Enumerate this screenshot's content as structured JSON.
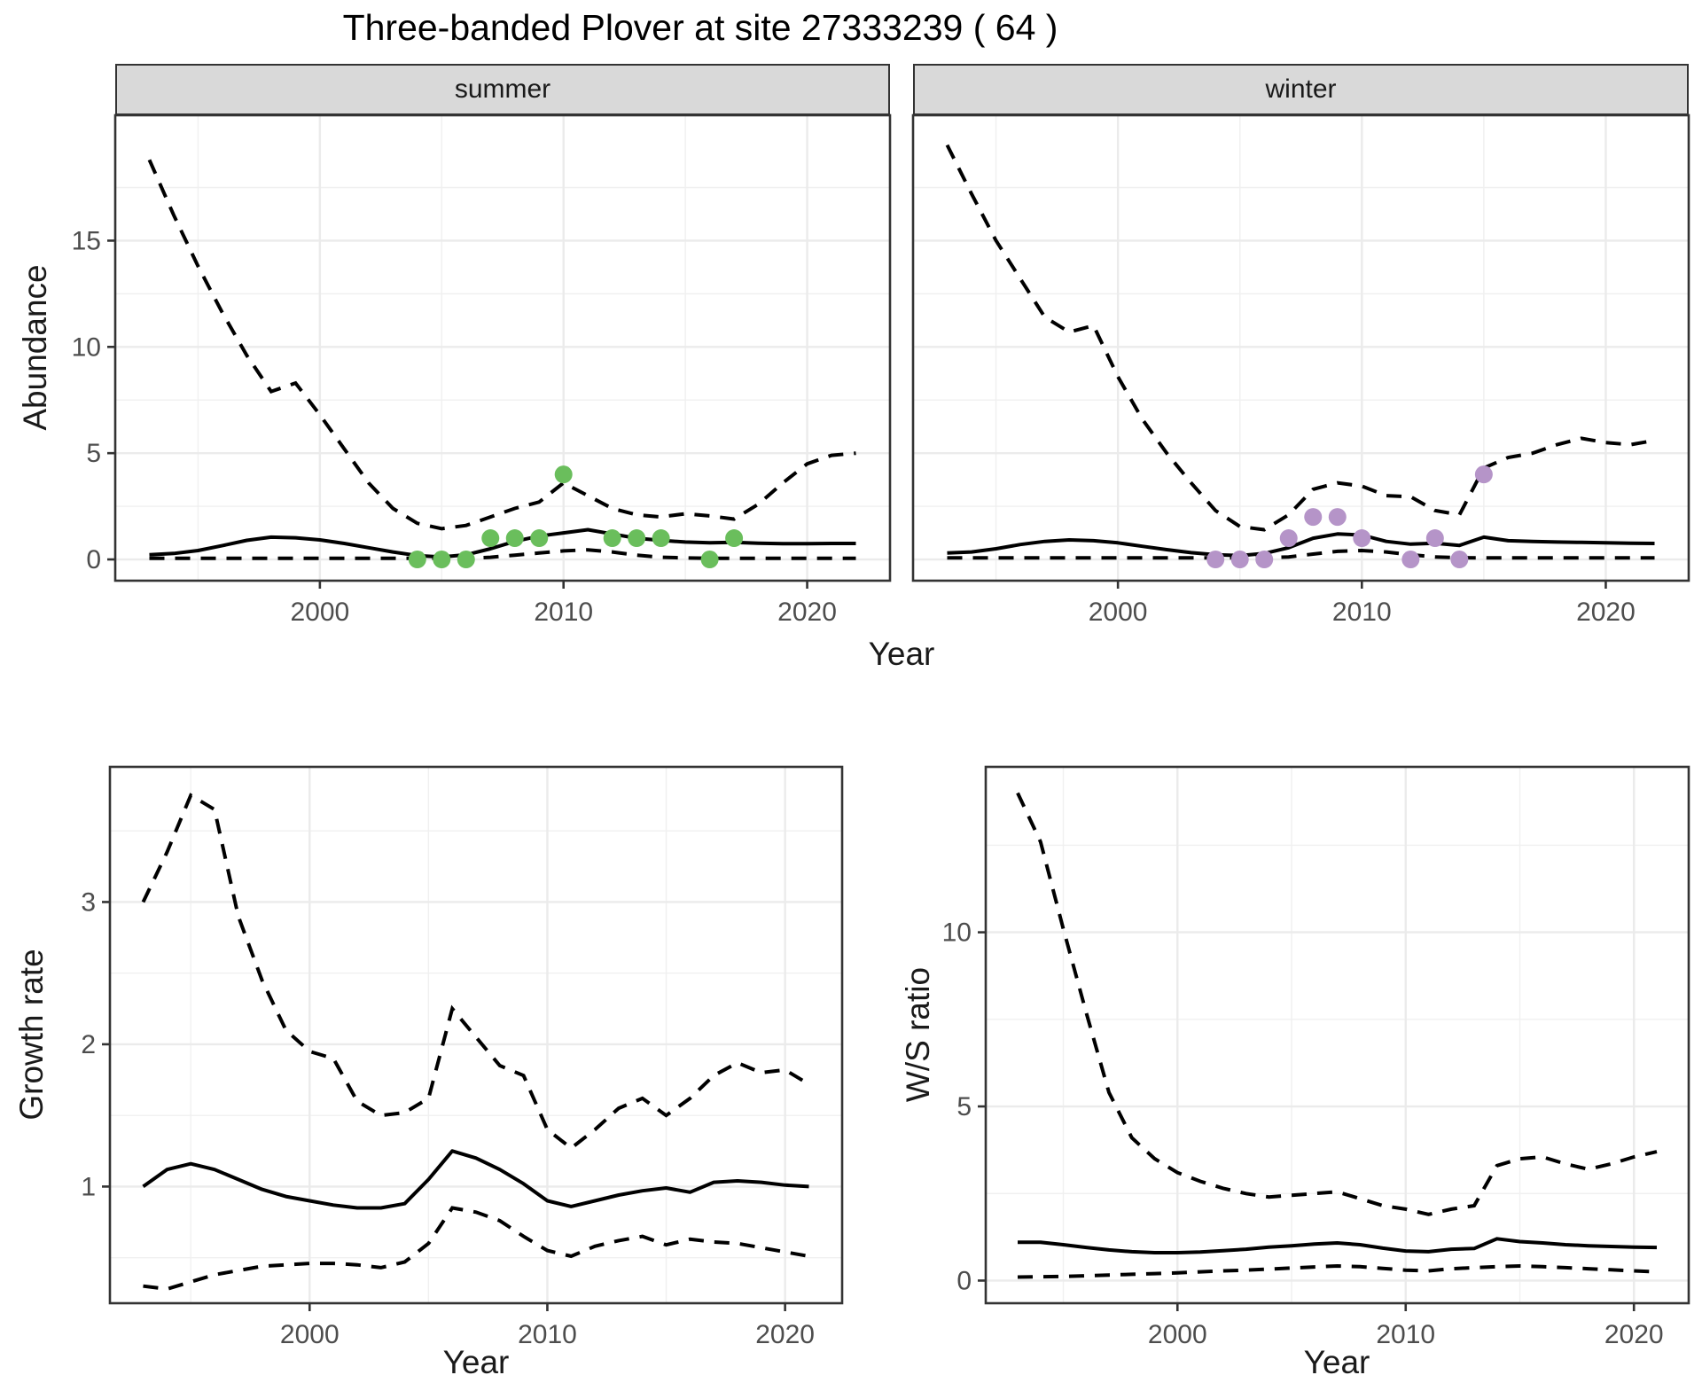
{
  "title": "Three-banded Plover at site 27333239 ( 64 )",
  "style": {
    "summer_point_color": "#6ABE5C",
    "winter_point_color": "#B594C8",
    "strip_background": "#D9D9D9",
    "grid_major_color": "#EBEBEB",
    "grid_minor_color": "#F0F0F0",
    "panel_border_color": "#333333",
    "tick_color": "#333333",
    "axis_text_color": "#4D4D4D",
    "line_color": "#000000"
  },
  "chart_data": [
    {
      "type": "line",
      "facet": "summer",
      "ylabel": "Abundance",
      "xlabel": "Year",
      "xlim": [
        1991.6,
        2023.4
      ],
      "ylim": [
        -1.0,
        20.9
      ],
      "xticks": [
        2000,
        2010,
        2020
      ],
      "xminor": [
        1995,
        2005,
        2015
      ],
      "yticks": [
        0,
        5,
        10,
        15
      ],
      "yminor": [
        2.5,
        7.5,
        12.5,
        17.5
      ],
      "x": [
        1993,
        1994,
        1995,
        1996,
        1997,
        1998,
        1999,
        2000,
        2001,
        2002,
        2003,
        2004,
        2005,
        2006,
        2007,
        2008,
        2009,
        2010,
        2011,
        2012,
        2013,
        2014,
        2015,
        2016,
        2017,
        2018,
        2019,
        2020,
        2021,
        2022
      ],
      "series": {
        "upper_ci": [
          18.8,
          16.2,
          13.8,
          11.6,
          9.6,
          7.9,
          8.3,
          6.8,
          5.2,
          3.6,
          2.4,
          1.7,
          1.45,
          1.6,
          2.0,
          2.4,
          2.7,
          3.6,
          3.0,
          2.4,
          2.1,
          2.0,
          2.15,
          2.05,
          1.9,
          2.6,
          3.6,
          4.5,
          4.9,
          5.0
        ],
        "median": [
          0.22,
          0.28,
          0.42,
          0.65,
          0.9,
          1.05,
          1.02,
          0.92,
          0.75,
          0.55,
          0.35,
          0.18,
          0.12,
          0.22,
          0.5,
          0.85,
          1.1,
          1.25,
          1.4,
          1.2,
          1.0,
          0.9,
          0.82,
          0.78,
          0.8,
          0.76,
          0.74,
          0.74,
          0.75,
          0.75
        ],
        "lower_ci": [
          0.05,
          0.05,
          0.05,
          0.05,
          0.05,
          0.05,
          0.05,
          0.05,
          0.05,
          0.05,
          0.05,
          0.05,
          0.05,
          0.05,
          0.1,
          0.2,
          0.3,
          0.4,
          0.45,
          0.35,
          0.2,
          0.1,
          0.07,
          0.05,
          0.05,
          0.05,
          0.05,
          0.05,
          0.05,
          0.05
        ]
      },
      "points": {
        "color": "#6ABE5C",
        "x": [
          2004,
          2005,
          2006,
          2007,
          2008,
          2009,
          2010,
          2012,
          2013,
          2014,
          2016,
          2017
        ],
        "y": [
          0,
          0,
          0,
          1,
          1,
          1,
          4,
          1,
          1,
          1,
          0,
          1
        ]
      }
    },
    {
      "type": "line",
      "facet": "winter",
      "ylabel": "Abundance",
      "xlabel": "Year",
      "xlim": [
        1991.6,
        2023.4
      ],
      "ylim": [
        -1.0,
        20.9
      ],
      "xticks": [
        2000,
        2010,
        2020
      ],
      "xminor": [
        1995,
        2005,
        2015
      ],
      "yticks": [
        0,
        5,
        10,
        15
      ],
      "yminor": [
        2.5,
        7.5,
        12.5,
        17.5
      ],
      "x": [
        1993,
        1994,
        1995,
        1996,
        1997,
        1998,
        1999,
        2000,
        2001,
        2002,
        2003,
        2004,
        2005,
        2006,
        2007,
        2008,
        2009,
        2010,
        2011,
        2012,
        2013,
        2014,
        2015,
        2016,
        2017,
        2018,
        2019,
        2020,
        2021,
        2022
      ],
      "series": {
        "upper_ci": [
          19.5,
          17.2,
          15.0,
          13.2,
          11.4,
          10.7,
          11.0,
          8.6,
          6.6,
          5.0,
          3.6,
          2.3,
          1.55,
          1.4,
          2.1,
          3.3,
          3.6,
          3.45,
          3.0,
          2.95,
          2.3,
          2.1,
          4.3,
          4.8,
          5.0,
          5.4,
          5.7,
          5.5,
          5.4,
          5.6
        ],
        "median": [
          0.3,
          0.35,
          0.5,
          0.7,
          0.85,
          0.92,
          0.88,
          0.78,
          0.62,
          0.46,
          0.32,
          0.22,
          0.18,
          0.28,
          0.55,
          1.0,
          1.2,
          1.15,
          0.85,
          0.72,
          0.76,
          0.66,
          1.05,
          0.88,
          0.85,
          0.82,
          0.8,
          0.78,
          0.76,
          0.75
        ],
        "lower_ci": [
          0.07,
          0.07,
          0.07,
          0.07,
          0.07,
          0.07,
          0.07,
          0.07,
          0.07,
          0.07,
          0.07,
          0.07,
          0.07,
          0.07,
          0.12,
          0.25,
          0.38,
          0.42,
          0.35,
          0.22,
          0.12,
          0.08,
          0.07,
          0.07,
          0.07,
          0.07,
          0.07,
          0.07,
          0.07,
          0.07
        ]
      },
      "points": {
        "color": "#B594C8",
        "x": [
          2004,
          2005,
          2006,
          2007,
          2008,
          2009,
          2010,
          2012,
          2013,
          2014,
          2015
        ],
        "y": [
          0,
          0,
          0,
          1,
          2,
          2,
          1,
          0,
          1,
          0,
          4
        ]
      }
    },
    {
      "type": "line",
      "facet": "",
      "ylabel": "Growth rate",
      "xlabel": "Year",
      "xlim": [
        1991.6,
        2022.4
      ],
      "ylim": [
        0.18,
        3.95
      ],
      "xticks": [
        2000,
        2010,
        2020
      ],
      "xminor": [
        1995,
        2005,
        2015
      ],
      "yticks": [
        1,
        2,
        3
      ],
      "yminor": [
        0.5,
        1.5,
        2.5,
        3.5
      ],
      "x": [
        1993,
        1994,
        1995,
        1996,
        1997,
        1998,
        1999,
        2000,
        2001,
        2002,
        2003,
        2004,
        2005,
        2006,
        2007,
        2008,
        2009,
        2010,
        2011,
        2012,
        2013,
        2014,
        2015,
        2016,
        2017,
        2018,
        2019,
        2020,
        2021
      ],
      "series": {
        "upper_ci": [
          3.0,
          3.35,
          3.75,
          3.65,
          2.9,
          2.45,
          2.1,
          1.95,
          1.9,
          1.6,
          1.5,
          1.52,
          1.62,
          2.25,
          2.05,
          1.85,
          1.78,
          1.4,
          1.27,
          1.4,
          1.55,
          1.62,
          1.5,
          1.62,
          1.78,
          1.87,
          1.8,
          1.82,
          1.72
        ],
        "median": [
          1.0,
          1.12,
          1.16,
          1.12,
          1.05,
          0.98,
          0.93,
          0.9,
          0.87,
          0.85,
          0.85,
          0.88,
          1.05,
          1.25,
          1.2,
          1.12,
          1.02,
          0.9,
          0.86,
          0.9,
          0.94,
          0.97,
          0.99,
          0.96,
          1.03,
          1.04,
          1.03,
          1.01,
          1.0
        ],
        "lower_ci": [
          0.3,
          0.28,
          0.33,
          0.38,
          0.41,
          0.44,
          0.45,
          0.46,
          0.46,
          0.45,
          0.43,
          0.47,
          0.6,
          0.85,
          0.82,
          0.76,
          0.65,
          0.55,
          0.51,
          0.58,
          0.62,
          0.65,
          0.59,
          0.63,
          0.61,
          0.6,
          0.57,
          0.54,
          0.51
        ]
      },
      "points": {
        "color": "",
        "x": [],
        "y": []
      }
    },
    {
      "type": "line",
      "facet": "",
      "ylabel": "W/S ratio",
      "xlabel": "Year",
      "xlim": [
        1991.6,
        2022.4
      ],
      "ylim": [
        -0.65,
        14.75
      ],
      "xticks": [
        2000,
        2010,
        2020
      ],
      "xminor": [
        1995,
        2005,
        2015
      ],
      "yticks": [
        0,
        5,
        10
      ],
      "yminor": [
        2.5,
        7.5,
        12.5
      ],
      "x": [
        1993,
        1994,
        1995,
        1996,
        1997,
        1998,
        1999,
        2000,
        2001,
        2002,
        2003,
        2004,
        2005,
        2006,
        2007,
        2008,
        2009,
        2010,
        2011,
        2012,
        2013,
        2014,
        2015,
        2016,
        2017,
        2018,
        2019,
        2020,
        2021
      ],
      "series": {
        "upper_ci": [
          14.0,
          12.6,
          10.1,
          7.7,
          5.4,
          4.1,
          3.5,
          3.1,
          2.85,
          2.65,
          2.5,
          2.4,
          2.45,
          2.5,
          2.55,
          2.35,
          2.15,
          2.05,
          1.9,
          2.05,
          2.15,
          3.3,
          3.5,
          3.55,
          3.35,
          3.2,
          3.35,
          3.55,
          3.7
        ],
        "median": [
          1.1,
          1.1,
          1.03,
          0.95,
          0.88,
          0.83,
          0.8,
          0.8,
          0.82,
          0.86,
          0.9,
          0.96,
          1.0,
          1.05,
          1.08,
          1.03,
          0.93,
          0.85,
          0.83,
          0.9,
          0.92,
          1.2,
          1.12,
          1.08,
          1.03,
          1.0,
          0.98,
          0.96,
          0.95
        ],
        "lower_ci": [
          0.1,
          0.11,
          0.12,
          0.14,
          0.16,
          0.18,
          0.2,
          0.22,
          0.25,
          0.28,
          0.3,
          0.33,
          0.36,
          0.39,
          0.42,
          0.4,
          0.35,
          0.3,
          0.28,
          0.34,
          0.37,
          0.4,
          0.42,
          0.4,
          0.37,
          0.34,
          0.31,
          0.28,
          0.25
        ]
      },
      "points": {
        "color": "",
        "x": [],
        "y": []
      }
    }
  ]
}
